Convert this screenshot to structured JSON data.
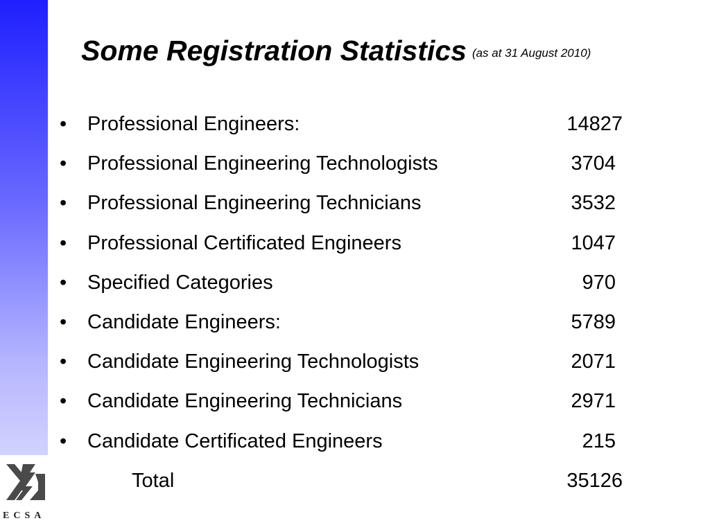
{
  "slide": {
    "title": "Some Registration Statistics",
    "subtitle": "(as at 31 August 2010)",
    "bullet_char": "•",
    "items": [
      {
        "label": "Professional Engineers:",
        "value": "14827"
      },
      {
        "label": "Professional Engineering Technologists",
        "value": "3704"
      },
      {
        "label": "Professional Engineering Technicians",
        "value": "3532"
      },
      {
        "label": "Professional Certificated Engineers",
        "value": "1047"
      },
      {
        "label": "Specified Categories",
        "value": "970"
      },
      {
        "label": "Candidate Engineers:",
        "value": "5789"
      },
      {
        "label": "Candidate Engineering Technologists",
        "value": "2071"
      },
      {
        "label": "Candidate Engineering Technicians",
        "value": "2971"
      },
      {
        "label": "Candidate Certificated Engineers",
        "value": "215"
      }
    ],
    "total": {
      "label": "Total",
      "value": "35126"
    }
  },
  "logo": {
    "text": "ECSA",
    "icon": "ecsa-logo-icon"
  },
  "colors": {
    "sidebar_top": "#1f1fff",
    "sidebar_bottom": "#d2d2ff",
    "text": "#000000",
    "logo": "#4a4a4a"
  }
}
